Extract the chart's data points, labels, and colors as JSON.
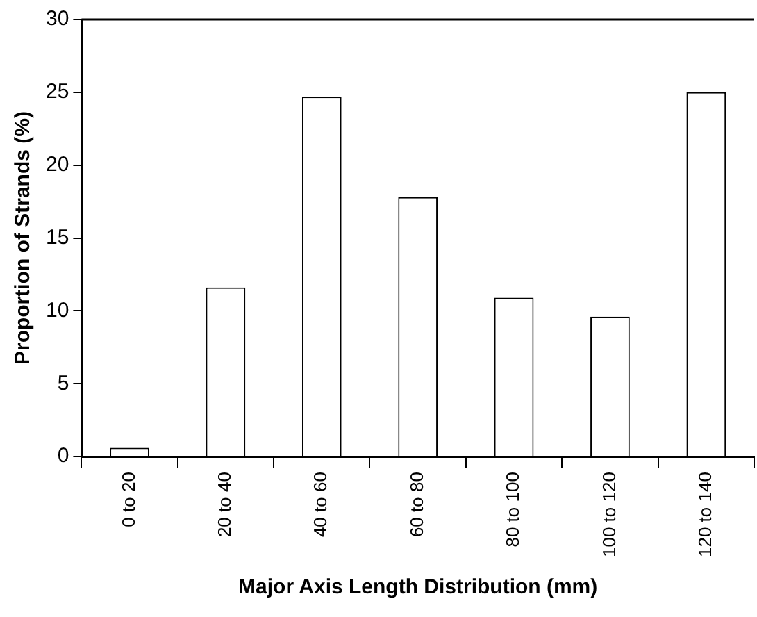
{
  "chart_data": {
    "type": "bar",
    "xlabel": "Major Axis Length Distribution (mm)",
    "ylabel": "Proportion of Strands (%)",
    "categories": [
      "0 to 20",
      "20 to 40",
      "40 to 60",
      "60 to 80",
      "80 to 100",
      "100 to 120",
      "120 to 140"
    ],
    "values": [
      0.6,
      11.6,
      24.7,
      17.8,
      10.9,
      9.6,
      25.0
    ],
    "color": "#ffffff",
    "ylim": [
      0,
      30
    ],
    "yticks": [
      0,
      5,
      10,
      15,
      20,
      25,
      30
    ],
    "grid": false,
    "legend": false
  }
}
